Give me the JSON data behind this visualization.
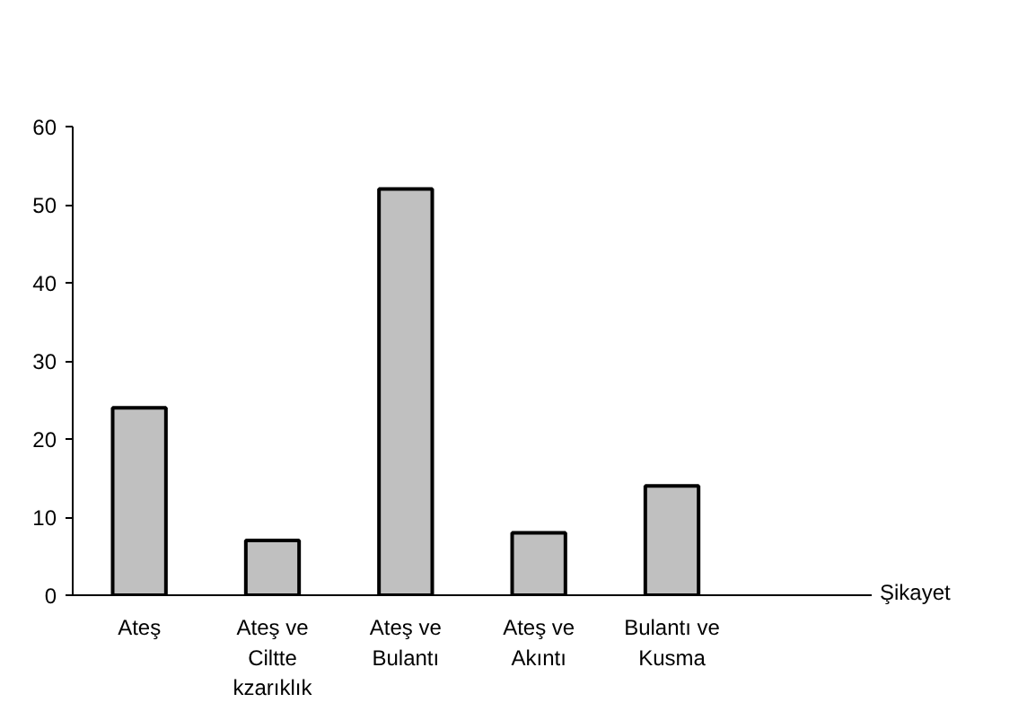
{
  "chart_data": {
    "type": "bar",
    "xlabel": "Şikayet",
    "categories": [
      "Ateş",
      "Ateş ve Ciltte kzarıklık",
      "Ateş ve Bulantı",
      "Ateş ve Akıntı",
      "Bulantı ve Kusma",
      null
    ],
    "values": [
      24,
      7,
      52,
      8,
      14,
      null
    ],
    "color": "#c0c0c0",
    "ylim": [
      0,
      60
    ],
    "yticks": [
      0,
      10,
      20,
      30,
      40,
      50,
      60
    ],
    "grid": false
  }
}
